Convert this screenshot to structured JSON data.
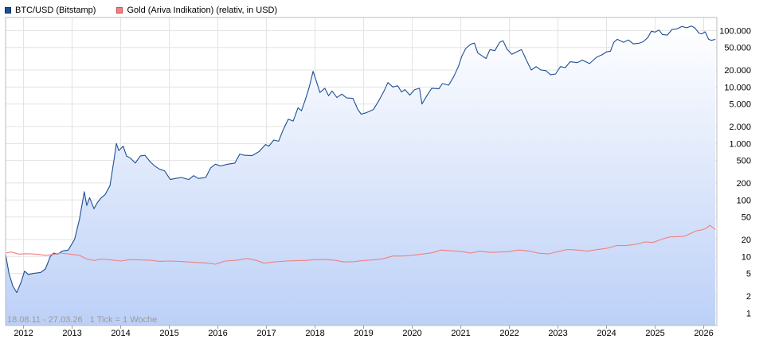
{
  "legend": [
    {
      "label": "BTC/USD (Bitstamp)",
      "color": "#1f4e96",
      "border": "#0d2d66"
    },
    {
      "label": "Gold (Ariva Indikation) (relativ, in USD)",
      "color": "#f08080",
      "border": "#c85050"
    }
  ],
  "footer": "18.08.11 - 27.03.26   1 Tick = 1 Woche",
  "chart_data": {
    "type": "line",
    "title": "",
    "xlabel": "",
    "ylabel": "",
    "yscale": "log",
    "grid": true,
    "legend_position": "top-left",
    "xlim": [
      2011.63,
      2026.24
    ],
    "ylim": [
      0.6,
      170000
    ],
    "x_ticks": [
      "2012",
      "2013",
      "2014",
      "2015",
      "2016",
      "2017",
      "2018",
      "2019",
      "2020",
      "2021",
      "2022",
      "2023",
      "2024",
      "2025",
      "2026"
    ],
    "y_ticks": [
      {
        "value": 100000,
        "label": "100.000"
      },
      {
        "value": 50000,
        "label": "50.000"
      },
      {
        "value": 20000,
        "label": "20.000"
      },
      {
        "value": 10000,
        "label": "10.000"
      },
      {
        "value": 5000,
        "label": "5.000"
      },
      {
        "value": 2000,
        "label": "2.000"
      },
      {
        "value": 1000,
        "label": "1.000"
      },
      {
        "value": 500,
        "label": "500"
      },
      {
        "value": 200,
        "label": "200"
      },
      {
        "value": 100,
        "label": "100"
      },
      {
        "value": 50,
        "label": "50"
      },
      {
        "value": 20,
        "label": "20"
      },
      {
        "value": 10,
        "label": "10"
      },
      {
        "value": 5,
        "label": "5"
      },
      {
        "value": 2,
        "label": "2"
      },
      {
        "value": 1,
        "label": "1"
      }
    ],
    "series": [
      {
        "name": "BTC/USD (Bitstamp)",
        "color": "#1f4e96",
        "fill": true,
        "points": [
          [
            2011.63,
            11
          ],
          [
            2011.7,
            5
          ],
          [
            2011.78,
            3
          ],
          [
            2011.86,
            2.3
          ],
          [
            2011.95,
            3.5
          ],
          [
            2012.02,
            5.5
          ],
          [
            2012.1,
            4.8
          ],
          [
            2012.2,
            5
          ],
          [
            2012.35,
            5.2
          ],
          [
            2012.45,
            6
          ],
          [
            2012.55,
            10
          ],
          [
            2012.62,
            11.5
          ],
          [
            2012.7,
            11
          ],
          [
            2012.8,
            12.5
          ],
          [
            2012.92,
            13
          ],
          [
            2013.05,
            20
          ],
          [
            2013.15,
            45
          ],
          [
            2013.25,
            140
          ],
          [
            2013.3,
            80
          ],
          [
            2013.36,
            110
          ],
          [
            2013.45,
            70
          ],
          [
            2013.52,
            90
          ],
          [
            2013.6,
            110
          ],
          [
            2013.68,
            125
          ],
          [
            2013.78,
            180
          ],
          [
            2013.86,
            500
          ],
          [
            2013.91,
            1000
          ],
          [
            2013.96,
            750
          ],
          [
            2014.05,
            900
          ],
          [
            2014.12,
            600
          ],
          [
            2014.2,
            550
          ],
          [
            2014.3,
            450
          ],
          [
            2014.4,
            600
          ],
          [
            2014.5,
            620
          ],
          [
            2014.6,
            480
          ],
          [
            2014.7,
            400
          ],
          [
            2014.8,
            350
          ],
          [
            2014.9,
            330
          ],
          [
            2015.02,
            230
          ],
          [
            2015.12,
            240
          ],
          [
            2015.25,
            250
          ],
          [
            2015.4,
            230
          ],
          [
            2015.5,
            270
          ],
          [
            2015.6,
            240
          ],
          [
            2015.75,
            250
          ],
          [
            2015.85,
            370
          ],
          [
            2015.95,
            430
          ],
          [
            2016.05,
            400
          ],
          [
            2016.2,
            430
          ],
          [
            2016.35,
            450
          ],
          [
            2016.45,
            650
          ],
          [
            2016.55,
            620
          ],
          [
            2016.7,
            610
          ],
          [
            2016.85,
            720
          ],
          [
            2016.98,
            960
          ],
          [
            2017.05,
            900
          ],
          [
            2017.15,
            1150
          ],
          [
            2017.25,
            1100
          ],
          [
            2017.35,
            1800
          ],
          [
            2017.45,
            2700
          ],
          [
            2017.55,
            2500
          ],
          [
            2017.65,
            4300
          ],
          [
            2017.72,
            3800
          ],
          [
            2017.8,
            6000
          ],
          [
            2017.88,
            10000
          ],
          [
            2017.96,
            19000
          ],
          [
            2018.05,
            11000
          ],
          [
            2018.1,
            8000
          ],
          [
            2018.2,
            9500
          ],
          [
            2018.28,
            7000
          ],
          [
            2018.35,
            8500
          ],
          [
            2018.45,
            6500
          ],
          [
            2018.55,
            7500
          ],
          [
            2018.65,
            6400
          ],
          [
            2018.78,
            6300
          ],
          [
            2018.88,
            4000
          ],
          [
            2018.95,
            3300
          ],
          [
            2019.05,
            3500
          ],
          [
            2019.2,
            4000
          ],
          [
            2019.3,
            5500
          ],
          [
            2019.42,
            8500
          ],
          [
            2019.5,
            12000
          ],
          [
            2019.6,
            10000
          ],
          [
            2019.7,
            10500
          ],
          [
            2019.78,
            8200
          ],
          [
            2019.85,
            9000
          ],
          [
            2019.95,
            7200
          ],
          [
            2020.05,
            9000
          ],
          [
            2020.15,
            9500
          ],
          [
            2020.2,
            5000
          ],
          [
            2020.3,
            7000
          ],
          [
            2020.4,
            9500
          ],
          [
            2020.55,
            9300
          ],
          [
            2020.62,
            11500
          ],
          [
            2020.75,
            10800
          ],
          [
            2020.85,
            15000
          ],
          [
            2020.95,
            23000
          ],
          [
            2021.02,
            35000
          ],
          [
            2021.1,
            48000
          ],
          [
            2021.2,
            57000
          ],
          [
            2021.28,
            60000
          ],
          [
            2021.35,
            40000
          ],
          [
            2021.45,
            35000
          ],
          [
            2021.52,
            32000
          ],
          [
            2021.6,
            46000
          ],
          [
            2021.7,
            44000
          ],
          [
            2021.8,
            62000
          ],
          [
            2021.87,
            66000
          ],
          [
            2021.95,
            47000
          ],
          [
            2022.05,
            38000
          ],
          [
            2022.15,
            42000
          ],
          [
            2022.25,
            46000
          ],
          [
            2022.35,
            30000
          ],
          [
            2022.45,
            20000
          ],
          [
            2022.55,
            23000
          ],
          [
            2022.65,
            20000
          ],
          [
            2022.75,
            19500
          ],
          [
            2022.85,
            16500
          ],
          [
            2022.95,
            17000
          ],
          [
            2023.05,
            23000
          ],
          [
            2023.15,
            22000
          ],
          [
            2023.25,
            28000
          ],
          [
            2023.4,
            27000
          ],
          [
            2023.5,
            30000
          ],
          [
            2023.65,
            26000
          ],
          [
            2023.8,
            34000
          ],
          [
            2023.9,
            37000
          ],
          [
            2024.0,
            42000
          ],
          [
            2024.08,
            43000
          ],
          [
            2024.15,
            62000
          ],
          [
            2024.22,
            70000
          ],
          [
            2024.35,
            62000
          ],
          [
            2024.45,
            68000
          ],
          [
            2024.55,
            58000
          ],
          [
            2024.65,
            59000
          ],
          [
            2024.75,
            63000
          ],
          [
            2024.85,
            75000
          ],
          [
            2024.92,
            97000
          ],
          [
            2025.0,
            94000
          ],
          [
            2025.08,
            102000
          ],
          [
            2025.15,
            85000
          ],
          [
            2025.25,
            83000
          ],
          [
            2025.35,
            105000
          ],
          [
            2025.45,
            107000
          ],
          [
            2025.55,
            118000
          ],
          [
            2025.65,
            112000
          ],
          [
            2025.75,
            120000
          ],
          [
            2025.82,
            110000
          ],
          [
            2025.9,
            90000
          ],
          [
            2025.96,
            87000
          ],
          [
            2026.03,
            95000
          ],
          [
            2026.1,
            70000
          ],
          [
            2026.16,
            67000
          ],
          [
            2026.24,
            70000
          ]
        ]
      },
      {
        "name": "Gold (Ariva Indikation) (relativ, in USD)",
        "color": "#f08080",
        "fill": false,
        "points": [
          [
            2011.63,
            11.5
          ],
          [
            2011.75,
            12
          ],
          [
            2011.9,
            11
          ],
          [
            2012.05,
            11.2
          ],
          [
            2012.25,
            11
          ],
          [
            2012.45,
            10.5
          ],
          [
            2012.6,
            10.8
          ],
          [
            2012.75,
            11.5
          ],
          [
            2012.95,
            11
          ],
          [
            2013.15,
            10.5
          ],
          [
            2013.3,
            9
          ],
          [
            2013.45,
            8.5
          ],
          [
            2013.6,
            9
          ],
          [
            2013.8,
            8.7
          ],
          [
            2014.0,
            8.3
          ],
          [
            2014.2,
            8.8
          ],
          [
            2014.4,
            8.7
          ],
          [
            2014.6,
            8.6
          ],
          [
            2014.8,
            8.2
          ],
          [
            2015.0,
            8.3
          ],
          [
            2015.2,
            8.2
          ],
          [
            2015.4,
            8
          ],
          [
            2015.6,
            7.8
          ],
          [
            2015.8,
            7.6
          ],
          [
            2015.95,
            7.3
          ],
          [
            2016.15,
            8.3
          ],
          [
            2016.4,
            8.6
          ],
          [
            2016.6,
            9.2
          ],
          [
            2016.8,
            8.5
          ],
          [
            2016.95,
            7.6
          ],
          [
            2017.15,
            8
          ],
          [
            2017.4,
            8.3
          ],
          [
            2017.6,
            8.4
          ],
          [
            2017.8,
            8.5
          ],
          [
            2018.0,
            8.8
          ],
          [
            2018.2,
            8.8
          ],
          [
            2018.4,
            8.6
          ],
          [
            2018.6,
            8
          ],
          [
            2018.8,
            8.1
          ],
          [
            2019.0,
            8.5
          ],
          [
            2019.2,
            8.7
          ],
          [
            2019.4,
            9.1
          ],
          [
            2019.6,
            10.2
          ],
          [
            2019.8,
            10.2
          ],
          [
            2020.0,
            10.5
          ],
          [
            2020.2,
            11
          ],
          [
            2020.4,
            11.6
          ],
          [
            2020.6,
            13
          ],
          [
            2020.8,
            12.6
          ],
          [
            2021.0,
            12.3
          ],
          [
            2021.2,
            11.5
          ],
          [
            2021.4,
            12.4
          ],
          [
            2021.6,
            11.8
          ],
          [
            2021.8,
            12
          ],
          [
            2022.0,
            12.2
          ],
          [
            2022.2,
            13
          ],
          [
            2022.4,
            12.5
          ],
          [
            2022.6,
            11.4
          ],
          [
            2022.8,
            11.1
          ],
          [
            2023.0,
            12.2
          ],
          [
            2023.2,
            13.3
          ],
          [
            2023.4,
            13
          ],
          [
            2023.6,
            12.4
          ],
          [
            2023.8,
            13.2
          ],
          [
            2024.0,
            13.9
          ],
          [
            2024.2,
            15.6
          ],
          [
            2024.4,
            15.6
          ],
          [
            2024.6,
            16.4
          ],
          [
            2024.8,
            18.1
          ],
          [
            2024.95,
            17.7
          ],
          [
            2025.15,
            20.3
          ],
          [
            2025.3,
            22.2
          ],
          [
            2025.45,
            22.4
          ],
          [
            2025.6,
            22.8
          ],
          [
            2025.75,
            26
          ],
          [
            2025.85,
            28.5
          ],
          [
            2025.95,
            29.3
          ],
          [
            2026.05,
            31.5
          ],
          [
            2026.12,
            35.5
          ],
          [
            2026.18,
            33
          ],
          [
            2026.24,
            30
          ]
        ]
      }
    ]
  }
}
